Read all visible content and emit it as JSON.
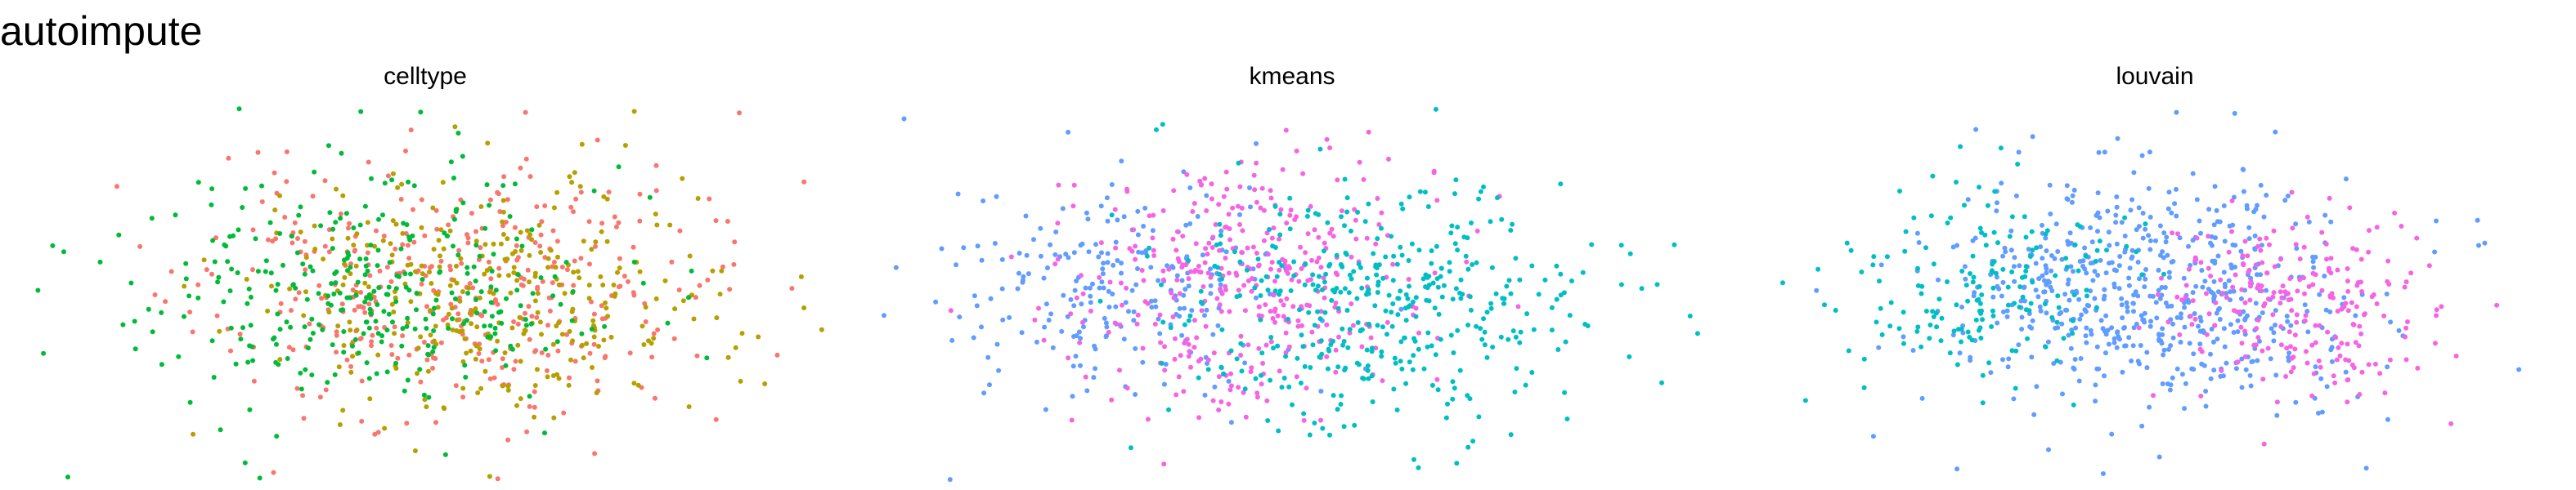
{
  "title": "autoimpute",
  "colors": {
    "red": "#F8766D",
    "olive": "#B79F00",
    "green": "#00BA38",
    "teal": "#00BFC4",
    "blue": "#619CFF",
    "pink": "#F564E3"
  },
  "chart_data": [
    {
      "type": "scatter",
      "title": "celltype",
      "xlabel": "",
      "ylabel": "",
      "axes_visible": false,
      "grid": false,
      "legend": "none",
      "series": [
        {
          "color_key": "red",
          "palette": "#F8766D",
          "n": 380,
          "cx": 0.05,
          "cy": 0.0,
          "sx": 0.29,
          "sy": 0.32,
          "seed": 11
        },
        {
          "color_key": "olive",
          "palette": "#B79F00",
          "n": 320,
          "cx": 0.15,
          "cy": -0.02,
          "sx": 0.27,
          "sy": 0.31,
          "seed": 23
        },
        {
          "color_key": "green",
          "palette": "#00BA38",
          "n": 330,
          "cx": -0.12,
          "cy": 0.03,
          "sx": 0.27,
          "sy": 0.3,
          "seed": 37
        }
      ]
    },
    {
      "type": "scatter",
      "title": "kmeans",
      "xlabel": "",
      "ylabel": "",
      "axes_visible": false,
      "grid": false,
      "legend": "none",
      "series": [
        {
          "color_key": "blue",
          "palette": "#619CFF",
          "n": 240,
          "cx": -0.4,
          "cy": 0.06,
          "sx": 0.2,
          "sy": 0.3,
          "seed": 41
        },
        {
          "color_key": "pink",
          "palette": "#F564E3",
          "n": 380,
          "cx": -0.12,
          "cy": 0.05,
          "sx": 0.2,
          "sy": 0.32,
          "seed": 53
        },
        {
          "color_key": "teal",
          "palette": "#00BFC4",
          "n": 410,
          "cx": 0.22,
          "cy": -0.05,
          "sx": 0.24,
          "sy": 0.31,
          "seed": 67
        }
      ]
    },
    {
      "type": "scatter",
      "title": "louvain",
      "xlabel": "",
      "ylabel": "",
      "axes_visible": false,
      "grid": false,
      "legend": "none",
      "series": [
        {
          "color_key": "blue",
          "palette": "#619CFF",
          "n": 620,
          "cx": -0.02,
          "cy": 0.02,
          "sx": 0.26,
          "sy": 0.31,
          "seed": 71
        },
        {
          "color_key": "pink",
          "palette": "#F564E3",
          "n": 240,
          "cx": 0.32,
          "cy": -0.05,
          "sx": 0.17,
          "sy": 0.25,
          "seed": 83
        },
        {
          "color_key": "teal",
          "palette": "#00BFC4",
          "n": 170,
          "cx": -0.42,
          "cy": 0.04,
          "sx": 0.18,
          "sy": 0.26,
          "seed": 97
        }
      ]
    }
  ]
}
